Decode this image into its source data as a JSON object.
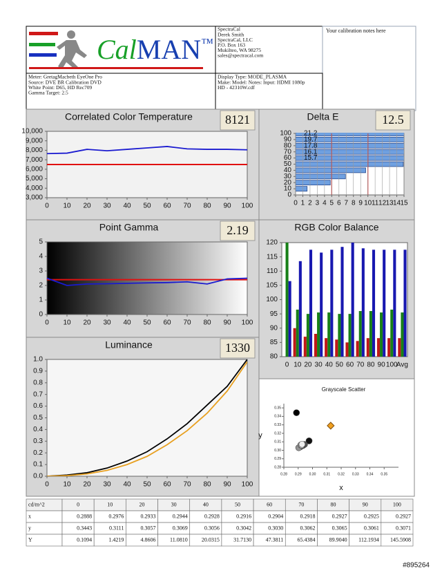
{
  "header": {
    "logo": {
      "cal": "Cal",
      "man": "MAN",
      "tm": "™"
    },
    "company": [
      "SpectraCal",
      "Derek Smith",
      "SpectraCal, LLC",
      "P.O. Box 163",
      "Mukilteo, WA 98275",
      "sales@spectracal.com"
    ],
    "notes": "Your calibration notes here",
    "meter": [
      "Meter: GretagMacbeth EyeOne Pro",
      "Source: DVE BR Calibration DVD",
      "White Point: D65, HD Rec709",
      "Gamma Target: 2.5"
    ],
    "display": [
      "Display Type: MODE_PLASMA",
      "Make: Model: Notes: Input: HDMI 1080p",
      "HD    -    42310W.cdf"
    ]
  },
  "chart_data": [
    {
      "type": "line",
      "title": "Correlated Color Temperature",
      "readout": 8121,
      "x": [
        0,
        10,
        20,
        30,
        40,
        50,
        60,
        70,
        80,
        90,
        100
      ],
      "series": [
        {
          "color": "#1a1ad0",
          "values": [
            7650,
            7700,
            8100,
            7950,
            8100,
            8250,
            8400,
            8150,
            8100,
            8100,
            8050
          ]
        }
      ],
      "target": 6500,
      "target_color": "#e01010",
      "xlim": [
        0,
        100
      ],
      "xticks": [
        0,
        10,
        20,
        30,
        40,
        50,
        60,
        70,
        80,
        90,
        100
      ],
      "ylim": [
        3000,
        10000
      ],
      "yticks": [
        {
          "value": 3000,
          "label": "3,000"
        },
        {
          "value": 4000,
          "label": "4,000"
        },
        {
          "value": 5000,
          "label": "5,000"
        },
        {
          "value": 6000,
          "label": "6,000"
        },
        {
          "value": 7000,
          "label": "7,000"
        },
        {
          "value": 8000,
          "label": "8,000"
        },
        {
          "value": 9000,
          "label": "9,000"
        },
        {
          "value": 10000,
          "label": "10,000"
        }
      ]
    },
    {
      "type": "hbar",
      "title": "Delta E",
      "readout": 12.5,
      "color": "#6fa0e0",
      "y": [
        100,
        90,
        80,
        70,
        60,
        50,
        40,
        30,
        20,
        10
      ],
      "values": [
        21.2,
        19.7,
        17.8,
        16.1,
        15.7,
        14.9,
        9.7,
        6.9,
        4.8,
        1.6
      ],
      "value_labels": [
        "21.2",
        "19.7",
        "17.8",
        "16.1",
        "15.7",
        null,
        null,
        null,
        null,
        null
      ],
      "thresholds": [
        5,
        10
      ],
      "threshold_color": "#d02020",
      "grid": "x",
      "xlim": [
        0,
        15
      ],
      "xticks": [
        0,
        1,
        2,
        3,
        4,
        5,
        6,
        7,
        8,
        9,
        10,
        11,
        12,
        13,
        14,
        15
      ],
      "ylim": [
        0,
        100
      ],
      "yticks": [
        0,
        10,
        20,
        30,
        40,
        50,
        60,
        70,
        80,
        90,
        100
      ]
    },
    {
      "type": "line",
      "title": "Point Gamma",
      "readout": 2.19,
      "gradient": true,
      "x": [
        0,
        10,
        20,
        30,
        40,
        50,
        60,
        70,
        80,
        90,
        100
      ],
      "series": [
        {
          "color": "#1a1ad0",
          "values": [
            2.5,
            2.0,
            2.1,
            2.12,
            2.15,
            2.18,
            2.2,
            2.25,
            2.1,
            2.45,
            2.5
          ]
        }
      ],
      "target": 2.4,
      "target_color": "#e01010",
      "xlim": [
        0,
        100
      ],
      "xticks": [
        0,
        10,
        20,
        30,
        40,
        50,
        60,
        70,
        80,
        90,
        100
      ],
      "ylim": [
        0,
        5
      ],
      "yticks": [
        0,
        1,
        2,
        3,
        4,
        5
      ]
    },
    {
      "type": "bar",
      "title": "RGB Color Balance",
      "categories": [
        "0",
        "10",
        "20",
        "30",
        "40",
        "50",
        "60",
        "70",
        "80",
        "90",
        "100",
        "Avg"
      ],
      "series": [
        {
          "color": "#c01818",
          "values": [
            79,
            90,
            87,
            88,
            86.5,
            86,
            85,
            85.5,
            86.5,
            86.5,
            86.5,
            86.5
          ]
        },
        {
          "color": "#188018",
          "values": [
            120,
            96.5,
            95,
            95.5,
            95.5,
            95,
            95,
            96,
            96,
            95.5,
            96.5,
            95.5
          ]
        },
        {
          "color": "#1818b0",
          "values": [
            106.5,
            113.5,
            117.5,
            116.5,
            117.5,
            118.5,
            120,
            118,
            117.5,
            117.5,
            117.5,
            117.5
          ]
        }
      ],
      "ylim": [
        80,
        120
      ],
      "yticks": [
        80,
        85,
        90,
        95,
        100,
        105,
        110,
        115,
        120
      ]
    },
    {
      "type": "line",
      "title": "Luminance",
      "readout": 1330,
      "x": [
        0,
        10,
        20,
        30,
        40,
        50,
        60,
        70,
        80,
        90,
        100
      ],
      "series": [
        {
          "color": "#000000",
          "values": [
            0,
            0.01,
            0.03,
            0.07,
            0.13,
            0.21,
            0.32,
            0.45,
            0.61,
            0.77,
            1.0
          ]
        },
        {
          "color": "#e8a020",
          "values": [
            0,
            0.005,
            0.02,
            0.05,
            0.1,
            0.17,
            0.27,
            0.39,
            0.54,
            0.73,
            0.98
          ]
        }
      ],
      "xlim": [
        0,
        100
      ],
      "xticks": [
        0,
        10,
        20,
        30,
        40,
        50,
        60,
        70,
        80,
        90,
        100
      ],
      "ylim": [
        0,
        1
      ],
      "yticks": [
        {
          "value": 0,
          "label": "0.0"
        },
        0.1,
        0.2,
        0.3,
        0.4,
        0.5,
        0.6,
        0.7,
        0.8,
        0.9,
        {
          "value": 1,
          "label": "1.0"
        }
      ]
    },
    {
      "type": "scatter",
      "title": "Grayscale Scatter",
      "xlabel": "x",
      "ylabel": "y",
      "series": [
        {
          "marker": "circle",
          "colors": [
            "#000000",
            "#111111",
            "#3a3a3a",
            "#555555",
            "#6a6a6a",
            "#808080",
            "#959595",
            "#aaaaaa",
            "#c0c0c0",
            "#d5d5d5",
            "#eeeeee"
          ],
          "x": [
            0.2888,
            0.2976,
            0.2933,
            0.2944,
            0.2928,
            0.2916,
            0.2904,
            0.2918,
            0.2927,
            0.2925,
            0.2927
          ],
          "values": [
            0.3443,
            0.3111,
            0.3057,
            0.3069,
            0.3056,
            0.3042,
            0.303,
            0.3062,
            0.3065,
            0.3061,
            0.3071
          ]
        },
        {
          "marker": "diamond",
          "color": "#f0a020",
          "x": [
            0.3127
          ],
          "values": [
            0.329
          ]
        }
      ],
      "xlim": [
        0.28,
        0.36
      ],
      "xticks": [
        0.28,
        0.29,
        {
          "value": 0.3,
          "label": "0.30"
        },
        0.31,
        0.32,
        0.33,
        0.34,
        0.35
      ],
      "ylim": [
        0.28,
        0.355
      ],
      "yticks": [
        0.28,
        0.29,
        {
          "value": 0.3,
          "label": "0.30"
        },
        0.31,
        0.32,
        0.33,
        0.34,
        0.35
      ]
    }
  ],
  "table": {
    "header": [
      "cd/m^2",
      "0",
      "10",
      "20",
      "30",
      "40",
      "50",
      "60",
      "70",
      "80",
      "90",
      "100"
    ],
    "rows": [
      [
        "x",
        "0.2888",
        "0.2976",
        "0.2933",
        "0.2944",
        "0.2928",
        "0.2916",
        "0.2904",
        "0.2918",
        "0.2927",
        "0.2925",
        "0.2927"
      ],
      [
        "y",
        "0.3443",
        "0.3111",
        "0.3057",
        "0.3069",
        "0.3056",
        "0.3042",
        "0.3030",
        "0.3062",
        "0.3065",
        "0.3061",
        "0.3071"
      ],
      [
        "Y",
        "0.1094",
        "1.4219",
        "4.8606",
        "11.0810",
        "20.0315",
        "31.7130",
        "47.3811",
        "65.4384",
        "89.9040",
        "112.1934",
        "145.5908"
      ]
    ]
  },
  "watermark": "#895264"
}
